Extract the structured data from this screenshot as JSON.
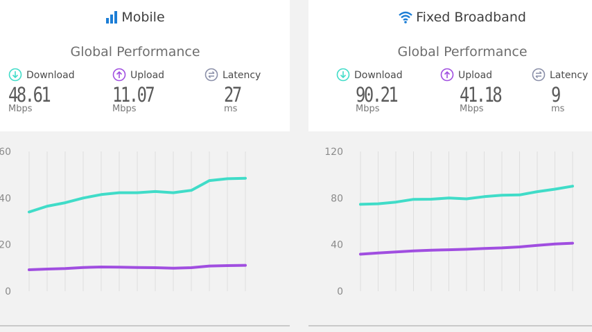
{
  "colors": {
    "download": "#40dcc8",
    "upload": "#a04ee0",
    "latency": "#8a8fa8",
    "accent": "#1c7ed6",
    "grid": "#dedede"
  },
  "panels": [
    {
      "title": "Mobile",
      "title_icon": "signal-bars-icon",
      "subtitle": "Global Performance",
      "metrics": {
        "download": {
          "label": "Download",
          "value": "48.61",
          "unit": "Mbps",
          "icon": "download-icon"
        },
        "upload": {
          "label": "Upload",
          "value": "11.07",
          "unit": "Mbps",
          "icon": "upload-icon"
        },
        "latency": {
          "label": "Latency",
          "value": "27",
          "unit": "ms",
          "icon": "latency-icon"
        }
      }
    },
    {
      "title": "Fixed Broadband",
      "title_icon": "wifi-icon",
      "subtitle": "Global Performance",
      "metrics": {
        "download": {
          "label": "Download",
          "value": "90.21",
          "unit": "Mbps",
          "icon": "download-icon"
        },
        "upload": {
          "label": "Upload",
          "value": "41.18",
          "unit": "Mbps",
          "icon": "upload-icon"
        },
        "latency": {
          "label": "Latency",
          "value": "9",
          "unit": "ms",
          "icon": "latency-icon"
        }
      }
    }
  ],
  "chart_data": [
    {
      "type": "line",
      "ylim": [
        0,
        60
      ],
      "yticks": [
        "0",
        "20",
        "40",
        "60"
      ],
      "x_points": 13,
      "grid": "vertical",
      "series": [
        {
          "values": [
            34,
            36.5,
            38,
            40,
            41.5,
            42.3,
            42.3,
            42.8,
            42.3,
            43.3,
            47.5,
            48.3,
            48.5
          ]
        },
        {
          "values": [
            9.2,
            9.5,
            9.7,
            10.2,
            10.4,
            10.3,
            10.2,
            10.1,
            9.9,
            10.1,
            10.8,
            11.0,
            11.1
          ]
        }
      ]
    },
    {
      "type": "line",
      "ylim": [
        0,
        120
      ],
      "yticks": [
        "0",
        "40",
        "80",
        "120"
      ],
      "x_points": 13,
      "grid": "vertical",
      "series": [
        {
          "values": [
            74.6,
            75.1,
            76.5,
            78.9,
            79.0,
            80.0,
            79.3,
            81.2,
            82.4,
            82.7,
            85.5,
            87.6,
            90.2
          ]
        },
        {
          "values": [
            31.8,
            32.8,
            33.7,
            34.6,
            35.2,
            35.6,
            36.0,
            36.7,
            37.2,
            38.0,
            39.4,
            40.6,
            41.2
          ]
        }
      ]
    }
  ]
}
